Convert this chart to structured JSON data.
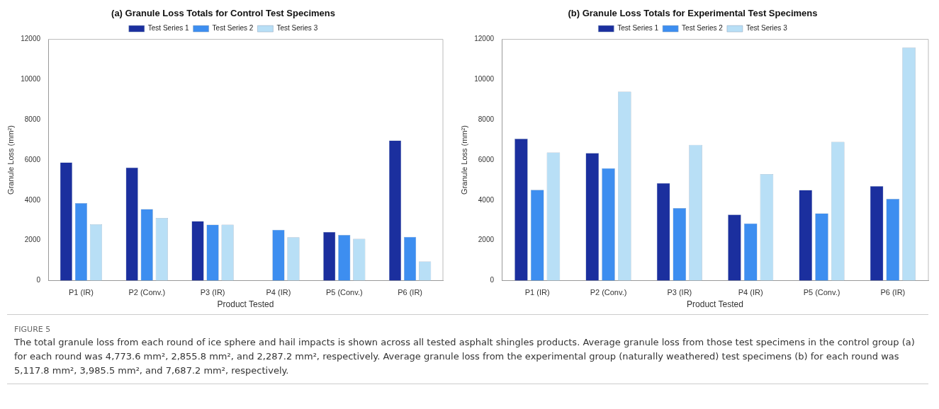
{
  "chart_data": [
    {
      "type": "bar",
      "title": "(a) Granule Loss Totals for Control Test Specimens",
      "xlabel": "Product Tested",
      "ylabel": "Granule Loss (mm²)",
      "categories": [
        "P1 (IR)",
        "P2 (Conv.)",
        "P3 (IR)",
        "P4 (IR)",
        "P5 (Conv.)",
        "P6 (IR)"
      ],
      "series": [
        {
          "name": "Test Series 1",
          "color": "#1b2f9e",
          "values": [
            5880,
            5620,
            2950,
            null,
            2420,
            6970
          ]
        },
        {
          "name": "Test Series 2",
          "color": "#3d8ef0",
          "values": [
            3850,
            3550,
            2780,
            2520,
            2270,
            2170
          ]
        },
        {
          "name": "Test Series 3",
          "color": "#b8dff6",
          "values": [
            2800,
            3110,
            2780,
            2150,
            2070,
            950
          ]
        }
      ],
      "ylim": [
        0,
        12000
      ],
      "yticks": [
        0,
        2000,
        4000,
        6000,
        8000,
        10000,
        12000
      ],
      "grid": false,
      "legend": "top",
      "annotations": [
        "FIGURE 5",
        "The total granule loss from each round of ice sphere and hail impacts is shown across all tested asphalt shingles products. Average granule loss from those test specimens in the control group (a) for each round was 4,773.6 mm², 2,855.8 mm², and 2,287.2 mm², respectively. Average granule loss from the experimental group (naturally weathered) test specimens (b) for each round was 5,117.8 mm², 3,985.5 mm², and 7,687.2 mm², respectively."
      ]
    },
    {
      "type": "bar",
      "title": "(b) Granule Loss Totals for Experimental Test Specimens",
      "xlabel": "Product Tested",
      "ylabel": "Granule Loss (mm²)",
      "categories": [
        "P1 (IR)",
        "P2 (Conv.)",
        "P3 (IR)",
        "P4 (IR)",
        "P5 (Conv.)",
        "P6 (IR)"
      ],
      "series": [
        {
          "name": "Test Series 1",
          "color": "#1b2f9e",
          "values": [
            7060,
            6340,
            4850,
            3280,
            4500,
            4700
          ]
        },
        {
          "name": "Test Series 2",
          "color": "#3d8ef0",
          "values": [
            4510,
            5590,
            3610,
            2840,
            3340,
            4060
          ]
        },
        {
          "name": "Test Series 3",
          "color": "#b8dff6",
          "values": [
            6370,
            9400,
            6750,
            5300,
            6900,
            11590
          ]
        }
      ],
      "ylim": [
        0,
        12000
      ],
      "yticks": [
        0,
        2000,
        4000,
        6000,
        8000,
        10000,
        12000
      ],
      "grid": false,
      "legend": "top"
    }
  ]
}
